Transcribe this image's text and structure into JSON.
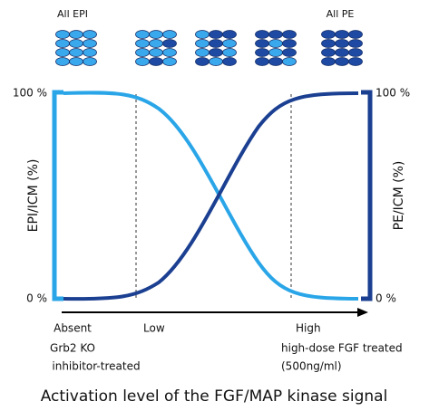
{
  "header": {
    "left_label": "All EPI",
    "right_label": "All PE"
  },
  "left_axis": {
    "title": "EPI/ICM (%)",
    "top": "100 %",
    "bottom": "0 %"
  },
  "right_axis": {
    "title": "PE/ICM (%)",
    "top": "100 %",
    "bottom": "0 %"
  },
  "x_labels": {
    "absent": "Absent",
    "low": "Low",
    "high": "High"
  },
  "conditions": {
    "left": [
      "Grb2 KO",
      "inhibitor-treated"
    ],
    "right": [
      "high-dose FGF treated",
      "(500ng/ml)"
    ]
  },
  "title": "Activation level of the FGF/MAP kinase signal"
}
